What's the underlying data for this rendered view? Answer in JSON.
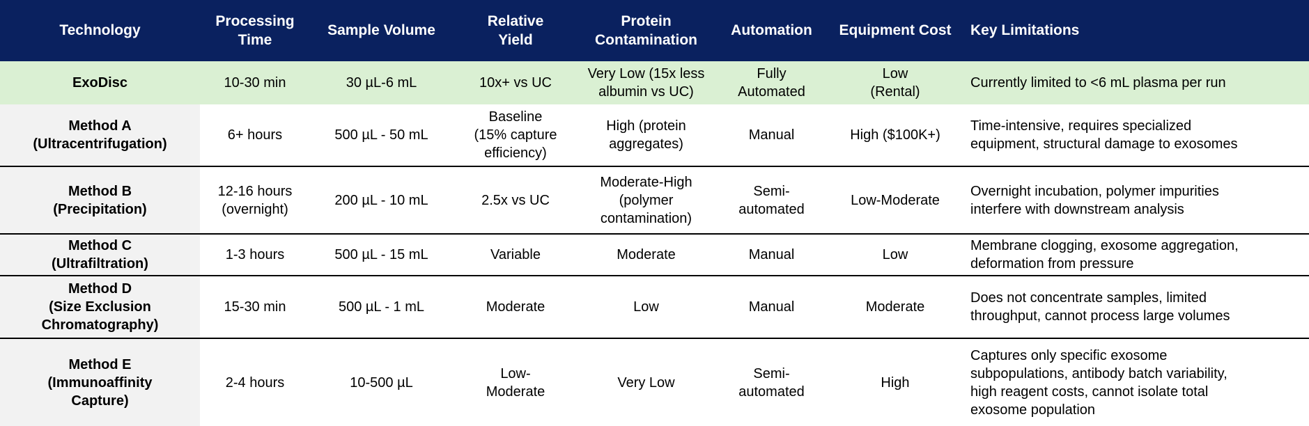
{
  "colors": {
    "header_bg": "#0a215f",
    "header_text": "#ffffff",
    "highlight_row_bg": "#daf0d3",
    "tech_column_bg": "#f2f2f2",
    "body_text": "#000000",
    "row_divider": "#000000"
  },
  "header": {
    "cells": [
      "Technology",
      "Processing\nTime",
      "Sample Volume",
      "Relative\nYield",
      "Protein\nContamination",
      "Automation",
      "Equipment Cost",
      "Key Limitations"
    ]
  },
  "rows": [
    {
      "id": "exodisc",
      "highlighted": true,
      "cells": [
        "ExoDisc",
        "10-30 min",
        "30 µL-6 mL",
        "10x+ vs UC",
        "Very Low (15x less\nalbumin vs UC)",
        "Fully\nAutomated",
        "Low\n(Rental)",
        "Currently limited to <6 mL plasma per run"
      ]
    },
    {
      "id": "method-a",
      "highlighted": false,
      "cells": [
        "Method A\n(Ultracentrifugation)",
        "6+ hours",
        "500 µL - 50 mL",
        "Baseline\n(15% capture\nefficiency)",
        "High (protein\naggregates)",
        "Manual",
        "High ($100K+)",
        "Time-intensive, requires specialized\nequipment, structural damage to exosomes"
      ]
    },
    {
      "id": "method-b",
      "highlighted": false,
      "cells": [
        "Method B\n(Precipitation)",
        "12-16 hours\n(overnight)",
        "200 µL - 10 mL",
        "2.5x vs UC",
        "Moderate-High\n(polymer\ncontamination)",
        "Semi-\nautomated",
        "Low-Moderate",
        "Overnight incubation, polymer impurities\ninterfere with downstream analysis"
      ]
    },
    {
      "id": "method-c",
      "highlighted": false,
      "cells": [
        "Method C\n(Ultrafiltration)",
        "1-3 hours",
        "500 µL - 15 mL",
        "Variable",
        "Moderate",
        "Manual",
        "Low",
        "Membrane clogging, exosome aggregation,\ndeformation from pressure"
      ]
    },
    {
      "id": "method-d",
      "highlighted": false,
      "cells": [
        "Method D\n(Size Exclusion\nChromatography)",
        "15-30 min",
        "500 µL - 1 mL",
        "Moderate",
        "Low",
        "Manual",
        "Moderate",
        "Does not concentrate samples, limited\nthroughput, cannot process large volumes"
      ]
    },
    {
      "id": "method-e",
      "highlighted": false,
      "cells": [
        "Method E\n(Immunoaffinity\nCapture)",
        "2-4 hours",
        "10-500 µL",
        "Low-\nModerate",
        "Very Low",
        "Semi-\nautomated",
        "High",
        "Captures only specific exosome\nsubpopulations, antibody batch variability,\nhigh reagent costs, cannot isolate total\nexosome population"
      ]
    }
  ]
}
